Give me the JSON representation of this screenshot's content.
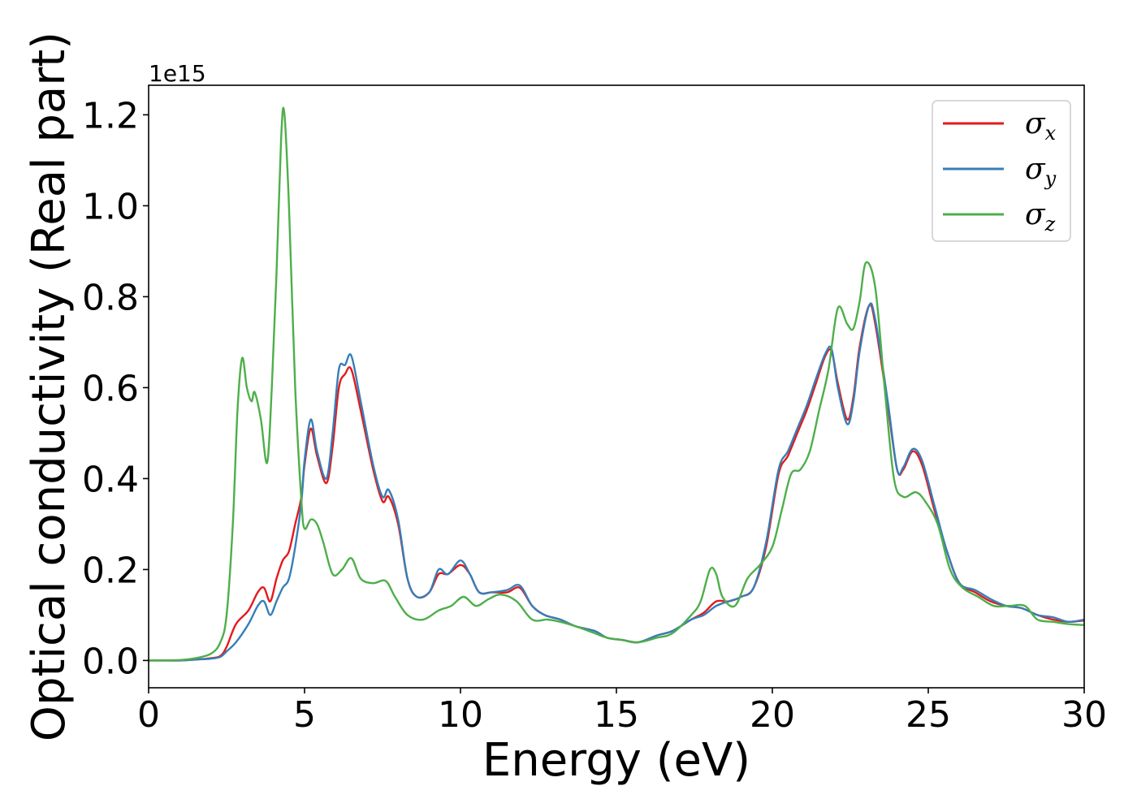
{
  "chart_data": {
    "type": "line",
    "xlabel": "Energy (eV)",
    "ylabel": "Optical conductivity (Real part)",
    "y_offset_label": "1e15",
    "xlim": [
      0,
      30
    ],
    "ylim": [
      -0.06,
      1.265
    ],
    "xticks": [
      0,
      5,
      10,
      15,
      20,
      25,
      30
    ],
    "xtick_labels": [
      "0",
      "5",
      "10",
      "15",
      "20",
      "25",
      "30"
    ],
    "yticks": [
      0.0,
      0.2,
      0.4,
      0.6,
      0.8,
      1.0,
      1.2
    ],
    "ytick_labels": [
      "0.0",
      "0.2",
      "0.4",
      "0.6",
      "0.8",
      "1.0",
      "1.2"
    ],
    "grid": false,
    "legend_position": "top-right",
    "series": [
      {
        "name": "σx",
        "symbol": "σ",
        "sub": "x",
        "color": "#e41a1c",
        "points": [
          [
            0,
            0
          ],
          [
            1,
            0
          ],
          [
            1.5,
            0.002
          ],
          [
            2,
            0.005
          ],
          [
            2.3,
            0.01
          ],
          [
            2.5,
            0.03
          ],
          [
            2.8,
            0.08
          ],
          [
            3.2,
            0.11
          ],
          [
            3.5,
            0.15
          ],
          [
            3.7,
            0.16
          ],
          [
            3.9,
            0.13
          ],
          [
            4.1,
            0.18
          ],
          [
            4.3,
            0.22
          ],
          [
            4.5,
            0.24
          ],
          [
            4.7,
            0.3
          ],
          [
            4.9,
            0.36
          ],
          [
            5.0,
            0.43
          ],
          [
            5.2,
            0.51
          ],
          [
            5.4,
            0.45
          ],
          [
            5.7,
            0.39
          ],
          [
            5.9,
            0.47
          ],
          [
            6.1,
            0.6
          ],
          [
            6.3,
            0.63
          ],
          [
            6.5,
            0.64
          ],
          [
            6.8,
            0.55
          ],
          [
            7.2,
            0.42
          ],
          [
            7.5,
            0.35
          ],
          [
            7.7,
            0.36
          ],
          [
            8.0,
            0.3
          ],
          [
            8.3,
            0.18
          ],
          [
            8.6,
            0.14
          ],
          [
            9.0,
            0.15
          ],
          [
            9.3,
            0.19
          ],
          [
            9.6,
            0.19
          ],
          [
            10.0,
            0.21
          ],
          [
            10.3,
            0.19
          ],
          [
            10.6,
            0.15
          ],
          [
            11.0,
            0.15
          ],
          [
            11.5,
            0.15
          ],
          [
            11.9,
            0.16
          ],
          [
            12.3,
            0.12
          ],
          [
            12.7,
            0.1
          ],
          [
            13.2,
            0.09
          ],
          [
            13.7,
            0.075
          ],
          [
            14.3,
            0.065
          ],
          [
            14.7,
            0.05
          ],
          [
            15.2,
            0.045
          ],
          [
            15.7,
            0.04
          ],
          [
            16.3,
            0.055
          ],
          [
            16.8,
            0.065
          ],
          [
            17.4,
            0.09
          ],
          [
            17.8,
            0.105
          ],
          [
            18.2,
            0.13
          ],
          [
            18.6,
            0.13
          ],
          [
            19.0,
            0.14
          ],
          [
            19.4,
            0.16
          ],
          [
            19.8,
            0.25
          ],
          [
            20.2,
            0.41
          ],
          [
            20.5,
            0.45
          ],
          [
            20.8,
            0.5
          ],
          [
            21.1,
            0.55
          ],
          [
            21.4,
            0.61
          ],
          [
            21.7,
            0.67
          ],
          [
            21.9,
            0.68
          ],
          [
            22.1,
            0.61
          ],
          [
            22.4,
            0.53
          ],
          [
            22.6,
            0.58
          ],
          [
            22.8,
            0.69
          ],
          [
            23.1,
            0.78
          ],
          [
            23.3,
            0.74
          ],
          [
            23.7,
            0.56
          ],
          [
            24.0,
            0.42
          ],
          [
            24.2,
            0.42
          ],
          [
            24.5,
            0.46
          ],
          [
            24.8,
            0.43
          ],
          [
            25.2,
            0.33
          ],
          [
            25.6,
            0.24
          ],
          [
            26.0,
            0.17
          ],
          [
            26.5,
            0.15
          ],
          [
            27.0,
            0.13
          ],
          [
            27.5,
            0.12
          ],
          [
            28.0,
            0.115
          ],
          [
            28.5,
            0.1
          ],
          [
            29.0,
            0.09
          ],
          [
            29.5,
            0.085
          ],
          [
            30.0,
            0.088
          ]
        ]
      },
      {
        "name": "σy",
        "symbol": "σ",
        "sub": "y",
        "color": "#377eb8",
        "points": [
          [
            0,
            0
          ],
          [
            1,
            0
          ],
          [
            1.5,
            0.002
          ],
          [
            2,
            0.004
          ],
          [
            2.3,
            0.008
          ],
          [
            2.5,
            0.02
          ],
          [
            2.8,
            0.04
          ],
          [
            3.2,
            0.08
          ],
          [
            3.5,
            0.12
          ],
          [
            3.7,
            0.13
          ],
          [
            3.9,
            0.1
          ],
          [
            4.1,
            0.13
          ],
          [
            4.3,
            0.16
          ],
          [
            4.5,
            0.18
          ],
          [
            4.7,
            0.25
          ],
          [
            4.9,
            0.35
          ],
          [
            5.0,
            0.44
          ],
          [
            5.2,
            0.53
          ],
          [
            5.4,
            0.46
          ],
          [
            5.7,
            0.4
          ],
          [
            5.9,
            0.5
          ],
          [
            6.1,
            0.64
          ],
          [
            6.3,
            0.65
          ],
          [
            6.5,
            0.67
          ],
          [
            6.8,
            0.57
          ],
          [
            7.2,
            0.43
          ],
          [
            7.5,
            0.36
          ],
          [
            7.7,
            0.375
          ],
          [
            8.0,
            0.31
          ],
          [
            8.3,
            0.18
          ],
          [
            8.6,
            0.14
          ],
          [
            9.0,
            0.15
          ],
          [
            9.3,
            0.2
          ],
          [
            9.6,
            0.19
          ],
          [
            10.0,
            0.22
          ],
          [
            10.3,
            0.19
          ],
          [
            10.6,
            0.15
          ],
          [
            11.0,
            0.15
          ],
          [
            11.5,
            0.155
          ],
          [
            11.9,
            0.165
          ],
          [
            12.3,
            0.12
          ],
          [
            12.7,
            0.1
          ],
          [
            13.2,
            0.09
          ],
          [
            13.7,
            0.075
          ],
          [
            14.3,
            0.065
          ],
          [
            14.7,
            0.05
          ],
          [
            15.2,
            0.045
          ],
          [
            15.7,
            0.04
          ],
          [
            16.3,
            0.055
          ],
          [
            16.8,
            0.065
          ],
          [
            17.4,
            0.09
          ],
          [
            17.8,
            0.1
          ],
          [
            18.2,
            0.12
          ],
          [
            18.6,
            0.13
          ],
          [
            19.0,
            0.14
          ],
          [
            19.4,
            0.16
          ],
          [
            19.8,
            0.26
          ],
          [
            20.2,
            0.42
          ],
          [
            20.5,
            0.46
          ],
          [
            20.8,
            0.51
          ],
          [
            21.1,
            0.56
          ],
          [
            21.4,
            0.62
          ],
          [
            21.7,
            0.675
          ],
          [
            21.9,
            0.685
          ],
          [
            22.1,
            0.6
          ],
          [
            22.4,
            0.52
          ],
          [
            22.6,
            0.57
          ],
          [
            22.8,
            0.68
          ],
          [
            23.1,
            0.78
          ],
          [
            23.3,
            0.75
          ],
          [
            23.7,
            0.57
          ],
          [
            24.0,
            0.42
          ],
          [
            24.2,
            0.425
          ],
          [
            24.5,
            0.465
          ],
          [
            24.8,
            0.44
          ],
          [
            25.2,
            0.34
          ],
          [
            25.6,
            0.24
          ],
          [
            26.0,
            0.17
          ],
          [
            26.5,
            0.155
          ],
          [
            27.0,
            0.135
          ],
          [
            27.5,
            0.12
          ],
          [
            28.0,
            0.115
          ],
          [
            28.5,
            0.1
          ],
          [
            29.0,
            0.095
          ],
          [
            29.5,
            0.085
          ],
          [
            30.0,
            0.09
          ]
        ]
      },
      {
        "name": "σz",
        "symbol": "σ",
        "sub": "z",
        "color": "#4daf4a",
        "points": [
          [
            0,
            0
          ],
          [
            1,
            0.001
          ],
          [
            1.5,
            0.005
          ],
          [
            2,
            0.015
          ],
          [
            2.3,
            0.04
          ],
          [
            2.5,
            0.1
          ],
          [
            2.7,
            0.3
          ],
          [
            2.85,
            0.55
          ],
          [
            3.0,
            0.665
          ],
          [
            3.15,
            0.6
          ],
          [
            3.3,
            0.57
          ],
          [
            3.4,
            0.59
          ],
          [
            3.6,
            0.53
          ],
          [
            3.8,
            0.435
          ],
          [
            3.95,
            0.6
          ],
          [
            4.1,
            0.85
          ],
          [
            4.25,
            1.15
          ],
          [
            4.35,
            1.205
          ],
          [
            4.5,
            1.0
          ],
          [
            4.7,
            0.6
          ],
          [
            4.9,
            0.35
          ],
          [
            5.0,
            0.29
          ],
          [
            5.2,
            0.31
          ],
          [
            5.4,
            0.3
          ],
          [
            5.6,
            0.26
          ],
          [
            5.9,
            0.19
          ],
          [
            6.2,
            0.2
          ],
          [
            6.5,
            0.225
          ],
          [
            6.8,
            0.18
          ],
          [
            7.2,
            0.17
          ],
          [
            7.6,
            0.175
          ],
          [
            7.9,
            0.14
          ],
          [
            8.3,
            0.1
          ],
          [
            8.8,
            0.09
          ],
          [
            9.3,
            0.11
          ],
          [
            9.7,
            0.12
          ],
          [
            10.1,
            0.14
          ],
          [
            10.5,
            0.12
          ],
          [
            10.9,
            0.135
          ],
          [
            11.3,
            0.145
          ],
          [
            11.8,
            0.13
          ],
          [
            12.3,
            0.09
          ],
          [
            12.8,
            0.09
          ],
          [
            13.2,
            0.085
          ],
          [
            13.7,
            0.075
          ],
          [
            14.3,
            0.06
          ],
          [
            14.7,
            0.05
          ],
          [
            15.2,
            0.045
          ],
          [
            15.7,
            0.04
          ],
          [
            16.3,
            0.05
          ],
          [
            16.8,
            0.06
          ],
          [
            17.4,
            0.1
          ],
          [
            17.7,
            0.13
          ],
          [
            18.0,
            0.2
          ],
          [
            18.2,
            0.19
          ],
          [
            18.4,
            0.14
          ],
          [
            18.8,
            0.12
          ],
          [
            19.2,
            0.18
          ],
          [
            19.6,
            0.21
          ],
          [
            20.0,
            0.25
          ],
          [
            20.3,
            0.33
          ],
          [
            20.6,
            0.41
          ],
          [
            20.9,
            0.42
          ],
          [
            21.2,
            0.46
          ],
          [
            21.5,
            0.55
          ],
          [
            21.8,
            0.64
          ],
          [
            22.1,
            0.775
          ],
          [
            22.4,
            0.74
          ],
          [
            22.6,
            0.73
          ],
          [
            22.8,
            0.79
          ],
          [
            23.0,
            0.875
          ],
          [
            23.3,
            0.82
          ],
          [
            23.6,
            0.6
          ],
          [
            23.9,
            0.4
          ],
          [
            24.2,
            0.36
          ],
          [
            24.6,
            0.37
          ],
          [
            24.9,
            0.35
          ],
          [
            25.3,
            0.3
          ],
          [
            25.7,
            0.2
          ],
          [
            26.1,
            0.16
          ],
          [
            26.6,
            0.14
          ],
          [
            27.1,
            0.12
          ],
          [
            27.6,
            0.12
          ],
          [
            28.1,
            0.12
          ],
          [
            28.5,
            0.09
          ],
          [
            29.0,
            0.085
          ],
          [
            29.5,
            0.08
          ],
          [
            30.0,
            0.078
          ]
        ]
      }
    ]
  }
}
